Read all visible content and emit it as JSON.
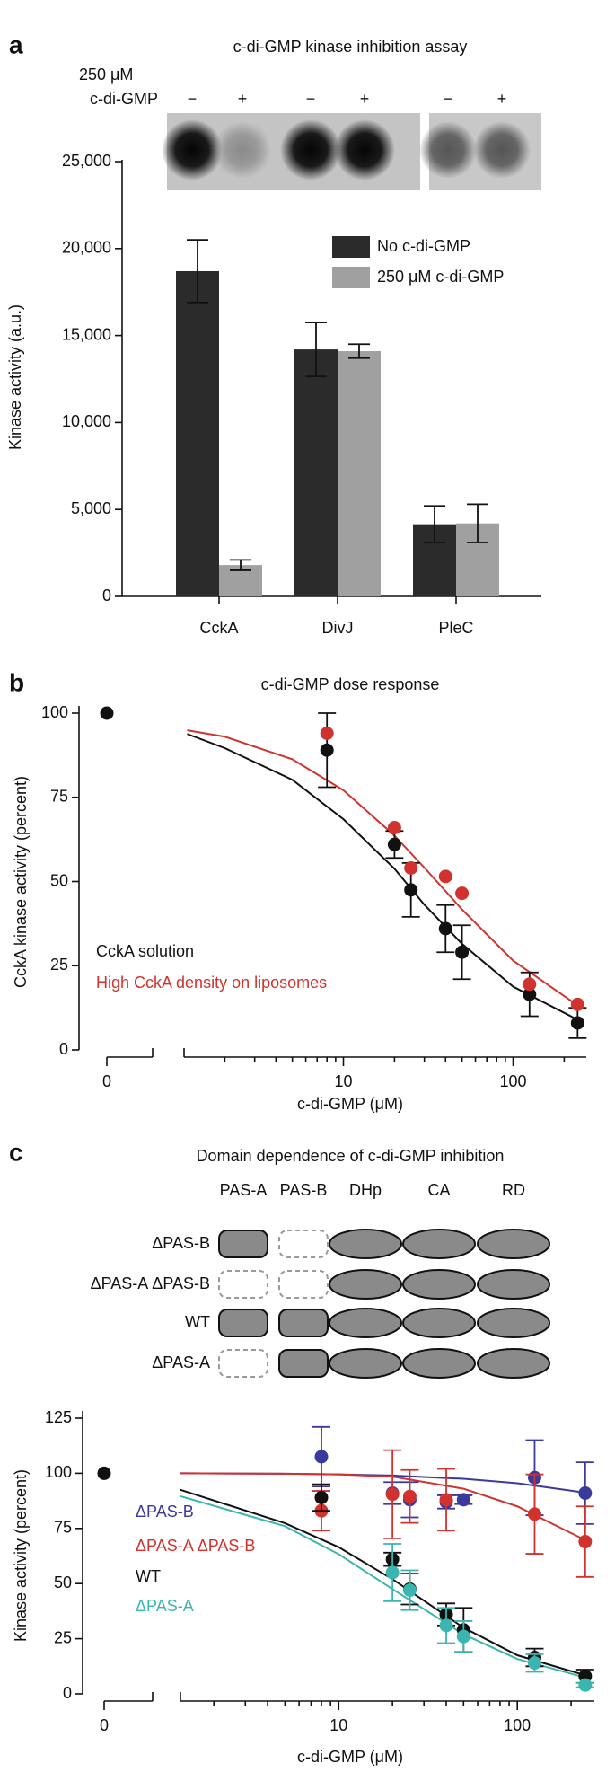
{
  "chart_data": [
    {
      "type": "bar",
      "panel": "a",
      "title": "c-di-GMP kinase inhibition assay",
      "gel_label": [
        "250 μM",
        "c-di-GMP"
      ],
      "lane_labels": [
        "−",
        "+",
        "−",
        "+",
        "−",
        "+"
      ],
      "ylabel": "Kinase activity (a.u.)",
      "categories": [
        "CckA",
        "DivJ",
        "PleC"
      ],
      "series": [
        {
          "name": "No c-di-GMP",
          "color": "#2b2b2b",
          "values": [
            18700,
            14200,
            4150
          ],
          "errors": [
            1800,
            1550,
            1050
          ]
        },
        {
          "name": "250 μM c-di-GMP",
          "color": "#a0a0a0",
          "values": [
            1800,
            14100,
            4200
          ],
          "errors": [
            300,
            400,
            1100
          ]
        }
      ],
      "ylim": [
        0,
        25000
      ],
      "yticks": [
        0,
        {
          "value": 5000,
          "label": "5,000"
        },
        {
          "value": 10000,
          "label": "10,000"
        },
        {
          "value": 15000,
          "label": "15,000"
        },
        {
          "value": 20000,
          "label": "20,000"
        },
        {
          "value": 25000,
          "label": "25,000"
        }
      ]
    },
    {
      "type": "scatter",
      "panel": "b",
      "title": "c-di-GMP dose response",
      "xlabel": "c-di-GMP (μM)",
      "ylabel": "CckA kinase activity (percent)",
      "xscale": "log",
      "x_break": true,
      "xlim": [
        1.15,
        270
      ],
      "xticks": [
        0,
        10,
        100
      ],
      "xminorticks": [
        2,
        3,
        4,
        5,
        6,
        7,
        8,
        9,
        20,
        30,
        40,
        50,
        60,
        70,
        80,
        90,
        200
      ],
      "ylim": [
        0,
        100
      ],
      "yticks": [
        0,
        25,
        50,
        75,
        100
      ],
      "series": [
        {
          "name": "CckA solution",
          "color": "#111111",
          "x": [
            0,
            8,
            20,
            25,
            40,
            50,
            125,
            240
          ],
          "values": [
            100,
            89,
            61,
            47.5,
            36,
            29,
            16.5,
            8
          ],
          "errors": [
            0,
            11,
            4,
            8,
            7,
            8,
            6.5,
            4.5
          ],
          "fit": {
            "x": [
              1.2,
              2,
              5,
              10,
              20,
              30,
              50,
              100,
              250
            ],
            "values": [
              93.8,
              89.6,
              80.2,
              68.5,
              53.8,
              43.1,
              31.5,
              18.8,
              8.5
            ]
          }
        },
        {
          "name": "High CckA density on liposomes",
          "color": "#d2322d",
          "x": [
            8,
            20,
            25,
            40,
            50,
            125,
            240
          ],
          "values": [
            94,
            66,
            54,
            51.5,
            46.5,
            19.5,
            13.5
          ],
          "errors": [
            0,
            0,
            0,
            0,
            0,
            0,
            0
          ],
          "fit": {
            "x": [
              1.2,
              2,
              5,
              10,
              20,
              30,
              50,
              100,
              250
            ],
            "values": [
              94.9,
              93.0,
              86.3,
              77.1,
              63.6,
              54.1,
              41.7,
              26.5,
              12.6
            ]
          }
        }
      ]
    },
    {
      "type": "scatter",
      "panel": "c",
      "title": "Domain dependence of c-di-GMP inhibition",
      "domain_diagram": {
        "columns": [
          "PAS-A",
          "PAS-B",
          "DHp",
          "CA",
          "RD"
        ],
        "rows": [
          {
            "label": "ΔPAS-B",
            "present": [
              true,
              false,
              true,
              true,
              true
            ]
          },
          {
            "label": "ΔPAS-A ΔPAS-B",
            "present": [
              false,
              false,
              true,
              true,
              true
            ]
          },
          {
            "label": "WT",
            "present": [
              true,
              true,
              true,
              true,
              true
            ]
          },
          {
            "label": "ΔPAS-A",
            "present": [
              false,
              true,
              true,
              true,
              true
            ]
          }
        ]
      },
      "xlabel": "c-di-GMP (μM)",
      "ylabel": "Kinase activity (percent)",
      "xscale": "log",
      "x_break": true,
      "xlim": [
        1.3,
        270
      ],
      "xticks": [
        0,
        10,
        100
      ],
      "xminorticks": [
        2,
        3,
        4,
        5,
        6,
        7,
        8,
        9,
        20,
        30,
        40,
        50,
        60,
        70,
        80,
        90,
        200
      ],
      "ylim": [
        0,
        125
      ],
      "yticks": [
        0,
        25,
        50,
        75,
        100,
        125
      ],
      "series": [
        {
          "name": "ΔPAS-B",
          "color": "#3a3a9e",
          "x": [
            8,
            20,
            25,
            40,
            50,
            125,
            240
          ],
          "values": [
            107.5,
            91,
            88,
            87,
            88,
            98,
            91
          ],
          "errors": [
            13.5,
            5,
            8,
            3,
            2,
            17,
            14
          ],
          "fit": {
            "x": [
              1.3,
              5,
              10,
              20,
              50,
              100,
              250
            ],
            "values": [
              100,
              99.8,
              99.5,
              99,
              97.5,
              95.5,
              91
            ]
          }
        },
        {
          "name": "ΔPAS-A ΔPAS-B",
          "color": "#d2322d",
          "x": [
            8,
            20,
            25,
            40,
            125,
            240
          ],
          "values": [
            83,
            90.5,
            89.5,
            88,
            81.5,
            69
          ],
          "errors": [
            9,
            20,
            12,
            14,
            18,
            16
          ],
          "fit": {
            "x": [
              1.3,
              5,
              10,
              20,
              50,
              100,
              250
            ],
            "values": [
              100,
              99.8,
              99.5,
              98.5,
              93,
              85,
              69
            ]
          }
        },
        {
          "name": "WT",
          "color": "#111111",
          "x": [
            0,
            8,
            20,
            25,
            40,
            50,
            125,
            240
          ],
          "values": [
            100,
            89,
            61,
            47.5,
            36,
            29,
            16.5,
            8
          ],
          "errors": [
            0,
            6,
            3,
            7,
            5,
            10,
            4,
            3
          ],
          "fit": {
            "x": [
              1.3,
              5,
              10,
              20,
              50,
              100,
              250
            ],
            "values": [
              92.5,
              77.4,
              66.5,
              52,
              30,
              17.5,
              8
            ]
          }
        },
        {
          "name": "ΔPAS-A",
          "color": "#3ab5b0",
          "x": [
            20,
            25,
            40,
            50,
            125,
            240
          ],
          "values": [
            55,
            47,
            31,
            26,
            14,
            4
          ],
          "errors": [
            13,
            9,
            8,
            7,
            4,
            1
          ],
          "fit": {
            "x": [
              1.3,
              5,
              10,
              20,
              50,
              100,
              250
            ],
            "values": [
              89.6,
              76,
              63.3,
              47.5,
              27,
              15.8,
              7.0
            ]
          }
        }
      ]
    }
  ]
}
